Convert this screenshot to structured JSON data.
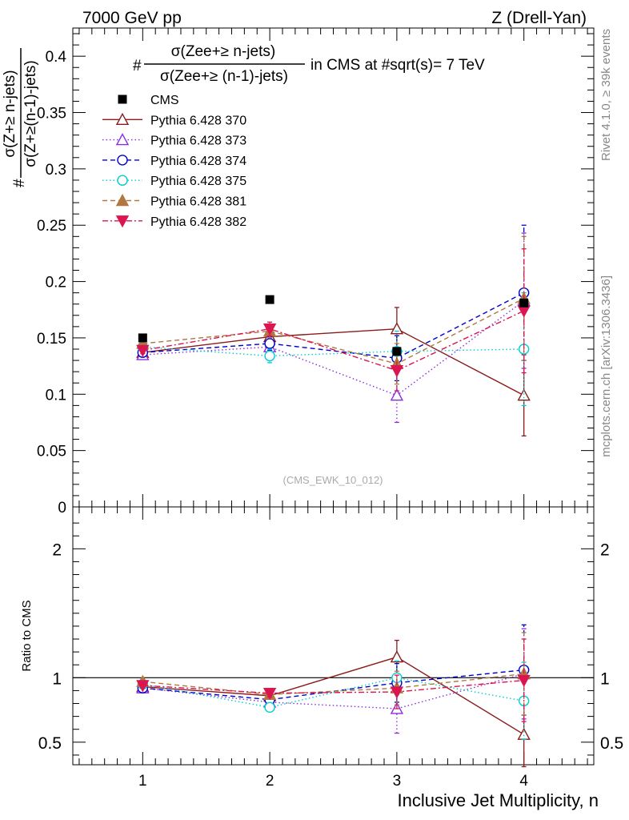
{
  "header": {
    "left": "7000 GeV pp",
    "right": "Z (Drell-Yan)"
  },
  "side_labels": {
    "rivet": "Rivet 4.1.0, ≥ 39k events",
    "mcplots": "mcplots.cern.ch [arXiv:1306.3436]"
  },
  "watermark": "(CMS_EWK_10_012)",
  "title": {
    "hash": "#",
    "numerator": "σ(Zee+≥ n-jets)",
    "denominator": "σ(Zee+≥ (n-1)-jets)",
    "suffix": "in CMS at #sqrt(s)= 7 TeV"
  },
  "ylabel": {
    "hash": "#",
    "numerator": "σ(Z+≥ n-jets)",
    "denominator": "σ(Z+≥(n-1)-jets)"
  },
  "ratio_ylabel": "Ratio to CMS",
  "xlabel": "Inclusive Jet Multiplicity, n",
  "chart_data": [
    {
      "type": "scatter",
      "panel": "main",
      "x": [
        1,
        2,
        3,
        4
      ],
      "xlim": [
        0.45,
        4.55
      ],
      "ylim": [
        0,
        0.425
      ],
      "yticks": [
        0,
        0.05,
        0.1,
        0.15,
        0.2,
        0.25,
        0.3,
        0.35,
        0.4
      ],
      "ytick_labels": [
        "0",
        "0.05",
        "0.1",
        "0.15",
        "0.2",
        "0.25",
        "0.3",
        "0.35",
        "0.4"
      ],
      "series": [
        {
          "name": "CMS",
          "color": "#000000",
          "marker": "square",
          "dash": "none",
          "values": [
            0.15,
            0.184,
            0.138,
            0.181
          ]
        },
        {
          "name": "Pythia 6.428 370",
          "color": "#8b1a1a",
          "marker": "triangle-open",
          "dash": "solid",
          "values": [
            0.137,
            0.151,
            0.158,
            0.099
          ],
          "errors": [
            0.003,
            0.006,
            0.019,
            0.036
          ]
        },
        {
          "name": "Pythia 6.428 373",
          "color": "#8a2be2",
          "marker": "triangle-open",
          "dash": "dotted",
          "values": [
            0.135,
            0.142,
            0.099,
            0.183
          ],
          "errors": [
            0.003,
            0.006,
            0.024,
            0.06
          ]
        },
        {
          "name": "Pythia 6.428 374",
          "color": "#0000cd",
          "marker": "circle-open",
          "dash": "dashed",
          "values": [
            0.137,
            0.145,
            0.132,
            0.19
          ],
          "errors": [
            0.003,
            0.006,
            0.02,
            0.06
          ]
        },
        {
          "name": "Pythia 6.428 375",
          "color": "#00ced1",
          "marker": "circle-open",
          "dash": "dotted",
          "values": [
            0.142,
            0.134,
            0.138,
            0.14
          ],
          "errors": [
            0.003,
            0.006,
            0.018,
            0.05
          ]
        },
        {
          "name": "Pythia 6.428 381",
          "color": "#b07840",
          "marker": "triangle-filled",
          "dash": "dashed",
          "values": [
            0.145,
            0.156,
            0.127,
            0.185
          ],
          "errors": [
            0.003,
            0.006,
            0.018,
            0.055
          ]
        },
        {
          "name": "Pythia 6.428 382",
          "color": "#dc1450",
          "marker": "triangle-down-filled",
          "dash": "dashdot",
          "values": [
            0.139,
            0.158,
            0.121,
            0.174
          ],
          "errors": [
            0.003,
            0.006,
            0.018,
            0.055
          ]
        }
      ]
    },
    {
      "type": "scatter",
      "panel": "ratio",
      "x": [
        1,
        2,
        3,
        4
      ],
      "xlim": [
        0.45,
        4.55
      ],
      "xticks": [
        1,
        2,
        3,
        4
      ],
      "xtick_labels": [
        "1",
        "2",
        "3",
        "4"
      ],
      "ylim": [
        0.325,
        2.325
      ],
      "yticks": [
        0.5,
        1,
        2
      ],
      "ytick_labels": [
        "0.5",
        "1",
        "2"
      ],
      "reference_line": 1,
      "series": [
        {
          "name": "Pythia 6.428 370",
          "values": [
            0.93,
            0.86,
            1.16,
            0.56
          ],
          "errors": [
            0.02,
            0.03,
            0.13,
            0.25
          ]
        },
        {
          "name": "Pythia 6.428 373",
          "values": [
            0.92,
            0.81,
            0.76,
            1.03
          ],
          "errors": [
            0.02,
            0.03,
            0.19,
            0.35
          ]
        },
        {
          "name": "Pythia 6.428 374",
          "values": [
            0.92,
            0.83,
            0.96,
            1.06
          ],
          "errors": [
            0.02,
            0.03,
            0.15,
            0.35
          ]
        },
        {
          "name": "Pythia 6.428 375",
          "values": [
            0.95,
            0.77,
            1.0,
            0.82
          ],
          "errors": [
            0.02,
            0.03,
            0.13,
            0.3
          ]
        },
        {
          "name": "Pythia 6.428 381",
          "values": [
            0.97,
            0.87,
            0.92,
            1.03
          ],
          "errors": [
            0.02,
            0.03,
            0.13,
            0.32
          ]
        },
        {
          "name": "Pythia 6.428 382",
          "values": [
            0.94,
            0.88,
            0.89,
            0.98
          ],
          "errors": [
            0.02,
            0.03,
            0.13,
            0.32
          ]
        }
      ]
    }
  ]
}
